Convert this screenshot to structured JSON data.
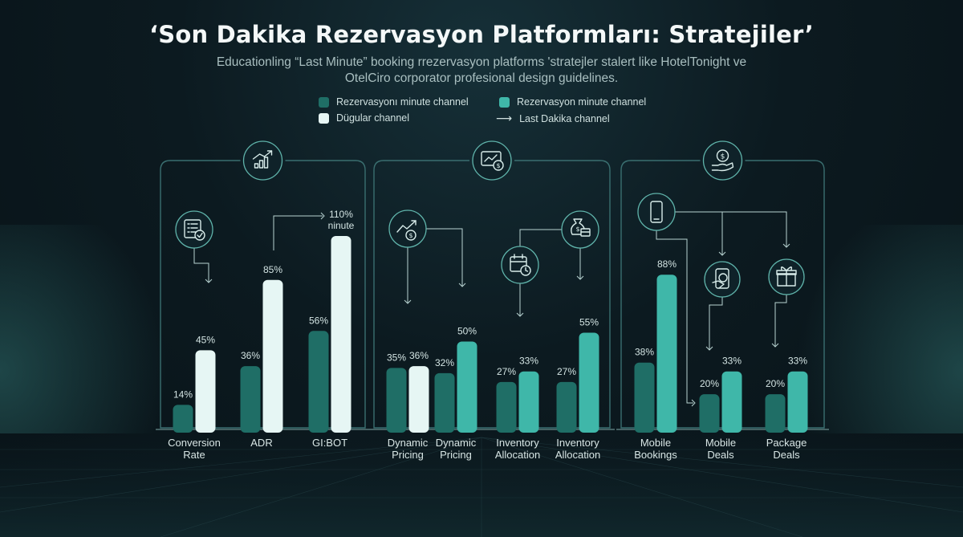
{
  "title": "‘Son Dakika Rezervasyon Platformları: Stratejiler’",
  "subtitle": "Educationling “Last Minute” booking rrezervasyon platforms 'stratejler stalert like HotelTonight ve OtelCiro corporator profesional design guidelines.",
  "legend": [
    {
      "label": "Rezervasyonı minute channel",
      "color": "#1f6e66"
    },
    {
      "label": "Rezervasyon minute channel",
      "color": "#3fb7a9"
    },
    {
      "label": "Dügular channel",
      "color": "#e6f6f4"
    },
    {
      "label": "Last Dakika channel",
      "icon": "arrow-right-icon"
    }
  ],
  "colors": {
    "dark": "#1f6e66",
    "teal": "#3fb7a9",
    "white": "#e6f6f4",
    "panel": "#3a6f70"
  },
  "chart_data": {
    "type": "bar",
    "ylim": [
      0,
      110
    ],
    "groups": [
      {
        "icon": "growth-chart-icon",
        "categories": [
          {
            "label": [
              "Conversion",
              "Rate"
            ],
            "values": [
              14,
              45
            ],
            "labels": [
              "14%",
              "45%"
            ],
            "colors": [
              "dark",
              "white"
            ]
          },
          {
            "label": [
              "ADR"
            ],
            "values": [
              36,
              85
            ],
            "labels": [
              "36%",
              "85%"
            ],
            "colors": [
              "dark",
              "white"
            ]
          },
          {
            "label": [
              "GI:BOT"
            ],
            "values": [
              56,
              110
            ],
            "labels": [
              "56%",
              "110%"
            ],
            "colors": [
              "dark",
              "white"
            ],
            "annotation": "ninute"
          }
        ]
      },
      {
        "icon": "pricing-monitor-icon",
        "categories": [
          {
            "label": [
              "Dynamic",
              "Pricing"
            ],
            "values": [
              35,
              36
            ],
            "labels": [
              "35%",
              "36%"
            ],
            "colors": [
              "dark",
              "white"
            ]
          },
          {
            "label": [
              "Dynamic",
              "Pricing"
            ],
            "values": [
              32,
              50
            ],
            "labels": [
              "32%",
              "50%"
            ],
            "colors": [
              "dark",
              "teal"
            ]
          },
          {
            "label": [
              "Inventory",
              "Allocation"
            ],
            "values": [
              27,
              33
            ],
            "labels": [
              "27%",
              "33%"
            ],
            "colors": [
              "dark",
              "teal"
            ]
          },
          {
            "label": [
              "Inventory",
              "Allocation"
            ],
            "values": [
              27,
              55
            ],
            "labels": [
              "27%",
              "55%"
            ],
            "colors": [
              "dark",
              "teal"
            ]
          }
        ]
      },
      {
        "icon": "hand-coin-icon",
        "categories": [
          {
            "label": [
              "Mobile",
              "Bookings"
            ],
            "values": [
              38,
              88
            ],
            "labels": [
              "38%",
              "88%"
            ],
            "colors": [
              "dark",
              "teal"
            ]
          },
          {
            "label": [
              "Mobile",
              "Deals"
            ],
            "values": [
              20,
              33
            ],
            "labels": [
              "20%",
              "33%"
            ],
            "colors": [
              "dark",
              "teal"
            ]
          },
          {
            "label": [
              "Package",
              "Deals"
            ],
            "values": [
              20,
              33
            ],
            "labels": [
              "20%",
              "33%"
            ],
            "colors": [
              "dark",
              "teal"
            ]
          }
        ]
      }
    ],
    "inner_icons": [
      "checklist-icon",
      "trend-coin-icon",
      "calendar-icon",
      "money-bag-icon",
      "smartphone-icon",
      "phone-deal-icon",
      "gift-icon"
    ]
  }
}
